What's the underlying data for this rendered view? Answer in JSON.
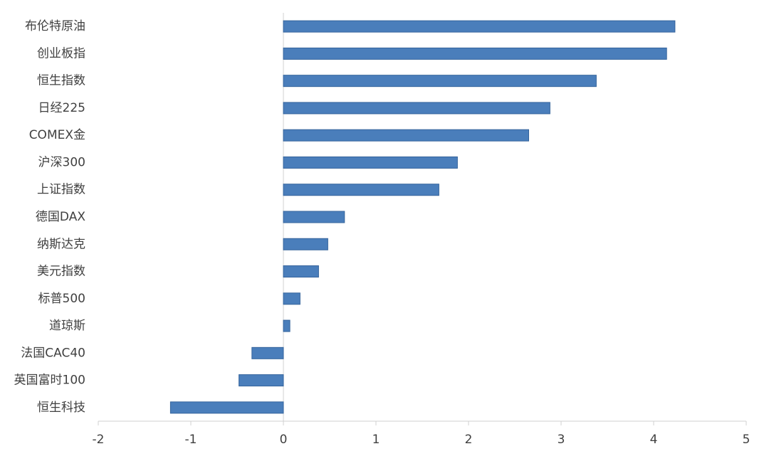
{
  "chart_data": {
    "type": "hbar",
    "categories": [
      "布伦特原油",
      "创业板指",
      "恒生指数",
      "日经225",
      "COMEX金",
      "沪深300",
      "上证指数",
      "德国DAX",
      "纳斯达克",
      "美元指数",
      "标普500",
      "道琼斯",
      "法国CAC40",
      "英国富时100",
      "恒生科技"
    ],
    "values": [
      4.23,
      4.14,
      3.38,
      2.88,
      2.65,
      1.88,
      1.68,
      0.66,
      0.48,
      0.38,
      0.18,
      0.07,
      -0.34,
      -0.48,
      -1.22
    ],
    "color": "#4a7ebb",
    "xlim": [
      -2,
      5
    ],
    "xticks": [
      -2,
      -1,
      0,
      1,
      2,
      3,
      4,
      5
    ]
  }
}
